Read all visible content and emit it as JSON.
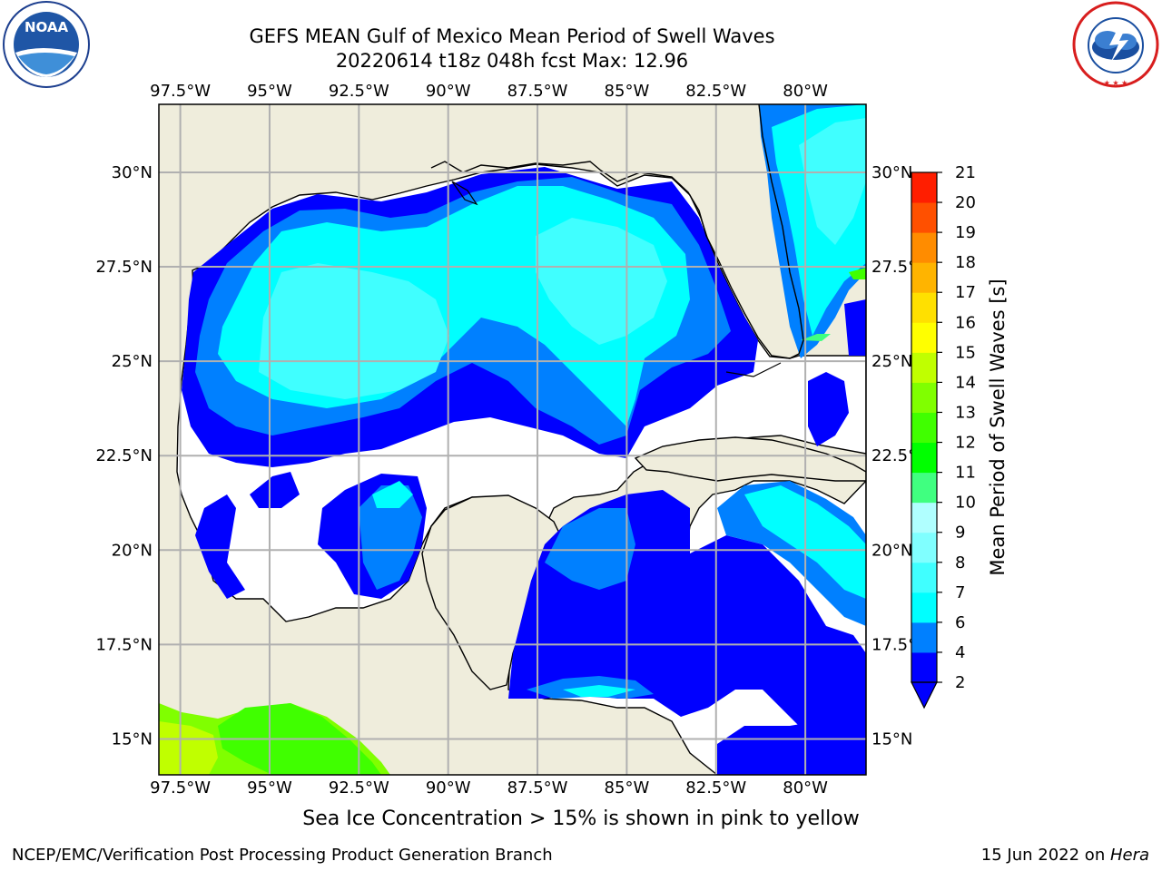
{
  "header": {
    "title_line1": "GEFS MEAN Gulf of Mexico Mean Period of Swell Waves",
    "title_line2": "20220614 t18z 048h fcst   Max: 12.96"
  },
  "logos": {
    "noaa_text": "NOAA",
    "noaa_ring_text": "NATIONAL OCEANIC AND ATMOSPHERIC ADMINISTRATION · U.S. DEPARTMENT OF COMMERCE",
    "nws_ring_text": "NATIONAL WEATHER SERVICE"
  },
  "map": {
    "lon_labels": [
      "97.5°W",
      "95°W",
      "92.5°W",
      "90°W",
      "87.5°W",
      "85°W",
      "82.5°W",
      "80°W"
    ],
    "lon_values": [
      -97.5,
      -95,
      -92.5,
      -90,
      -87.5,
      -85,
      -82.5,
      -80
    ],
    "lat_labels": [
      "30°N",
      "27.5°N",
      "25°N",
      "22.5°N",
      "20°N",
      "17.5°N",
      "15°N"
    ],
    "lat_values": [
      30,
      27.5,
      25,
      22.5,
      20,
      17.5,
      15
    ],
    "extent": {
      "lon_min": -98.1,
      "lon_max": -78.3,
      "lat_min": 14.05,
      "lat_max": 31.8
    },
    "grid": true,
    "colors": {
      "land": "#efeddc",
      "no_data": "#ffffff",
      "grid": "#b0b0b0"
    }
  },
  "colorbar": {
    "label": "Mean Period of Swell Waves [s]",
    "ticks": [
      "2",
      "4",
      "6",
      "7",
      "8",
      "9",
      "10",
      "11",
      "12",
      "13",
      "14",
      "15",
      "16",
      "17",
      "18",
      "19",
      "20",
      "21"
    ],
    "levels": [
      2,
      4,
      6,
      7,
      8,
      9,
      10,
      11,
      12,
      13,
      14,
      15,
      16,
      17,
      18,
      19,
      20,
      21
    ],
    "colors": [
      "#0000ff",
      "#0080ff",
      "#00ffff",
      "#40ffff",
      "#80ffff",
      "#b0ffff",
      "#40ff80",
      "#00ff00",
      "#40ff00",
      "#80ff00",
      "#c0ff00",
      "#ffff00",
      "#ffe000",
      "#ffb400",
      "#ff8c00",
      "#ff5000",
      "#ff1e00",
      "#ff0000"
    ],
    "extend": "min"
  },
  "note": "Sea Ice Concentration > 15% is shown in pink to yellow",
  "footer": {
    "left": "NCEP/EMC/Verification Post Processing Product Generation Branch",
    "right_prefix": "15 Jun 2022 on ",
    "right_machine": "Hera"
  }
}
